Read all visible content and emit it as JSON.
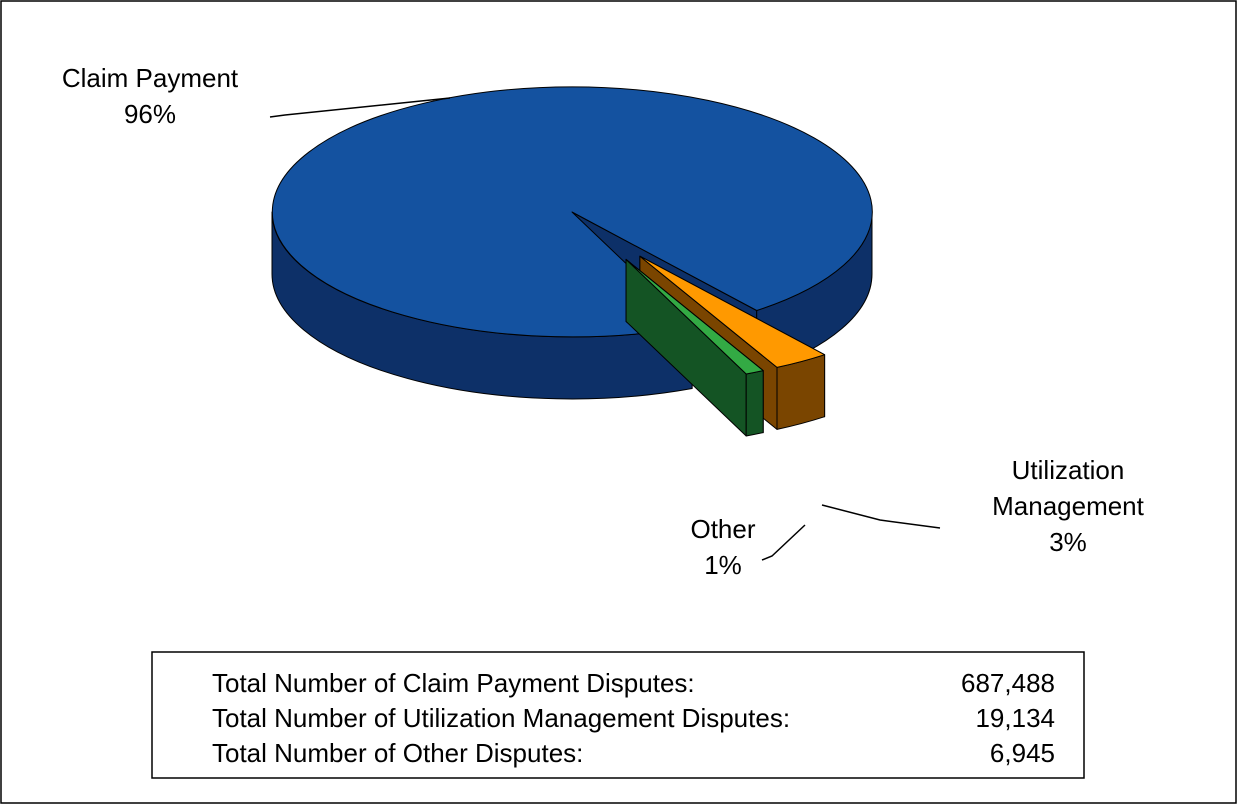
{
  "chart_data": {
    "type": "pie3d",
    "categories": [
      "Claim Payment",
      "Utilization Management",
      "Other"
    ],
    "values": [
      96,
      3,
      1
    ],
    "value_labels": [
      "96%",
      "3%",
      "1%"
    ],
    "colors": [
      "#1452a0",
      "#ff9900",
      "#33aa44"
    ],
    "side_colors": [
      "#0d3068",
      "#7a4500",
      "#145424"
    ]
  },
  "totals": {
    "rows": [
      [
        "Total Number of Claim Payment Disputes:",
        "687,488"
      ],
      [
        "Total Number of Utilization Management Disputes:",
        "19,134"
      ],
      [
        "Total Number of Other Disputes:",
        "6,945"
      ]
    ]
  }
}
